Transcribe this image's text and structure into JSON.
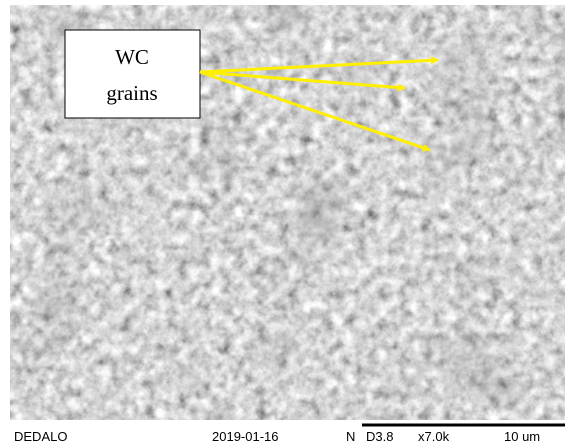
{
  "annotation": {
    "line1": "WC",
    "line2": "grains"
  },
  "footer": {
    "operator": "DEDALO",
    "date": "2019-01-16",
    "mode": "N",
    "distance": "D3.8",
    "magnification": "x7.0k",
    "scale": "10 um"
  }
}
